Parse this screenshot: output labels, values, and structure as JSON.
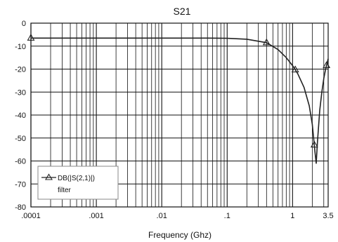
{
  "chart_data": {
    "type": "line",
    "title": "S21",
    "xlabel": "Frequency (Ghz)",
    "ylabel": "",
    "x_scale": "log",
    "xlim": [
      0.0001,
      3.5
    ],
    "ylim": [
      -80,
      0
    ],
    "grid": true,
    "x_tick_values": [
      0.0001,
      0.001,
      0.01,
      0.1,
      1,
      3.5
    ],
    "x_tick_labels": [
      ".0001",
      ".001",
      ".01",
      ".1",
      "1",
      "3.5"
    ],
    "y_ticks": [
      0,
      -10,
      -20,
      -30,
      -40,
      -50,
      -60,
      -70,
      -80
    ],
    "legend_position": "bottom-left",
    "legend": {
      "line1": "DB(|S(2,1)|)",
      "line2": "filter"
    },
    "series": [
      {
        "name": "DB(|S(2,1)|) filter",
        "marker": "triangle",
        "color": "#222222",
        "x": [
          0.0001,
          0.001,
          0.01,
          0.05,
          0.1,
          0.2,
          0.4,
          0.6,
          0.8,
          1.0,
          1.2,
          1.5,
          1.8,
          2.0,
          2.1,
          2.2,
          2.3,
          2.4,
          2.6,
          2.8,
          3.0,
          3.2,
          3.5
        ],
        "y": [
          -6.5,
          -6.5,
          -6.5,
          -6.5,
          -6.6,
          -7.0,
          -8.5,
          -11.5,
          -15.0,
          -18.5,
          -22.0,
          -28.0,
          -36.0,
          -44.0,
          -50.0,
          -56.0,
          -61.0,
          -52.0,
          -38.0,
          -30.0,
          -24.0,
          -20.0,
          -15.5
        ],
        "marker_x": [
          0.0001,
          0.4,
          1.1,
          2.15,
          3.3
        ]
      }
    ]
  }
}
